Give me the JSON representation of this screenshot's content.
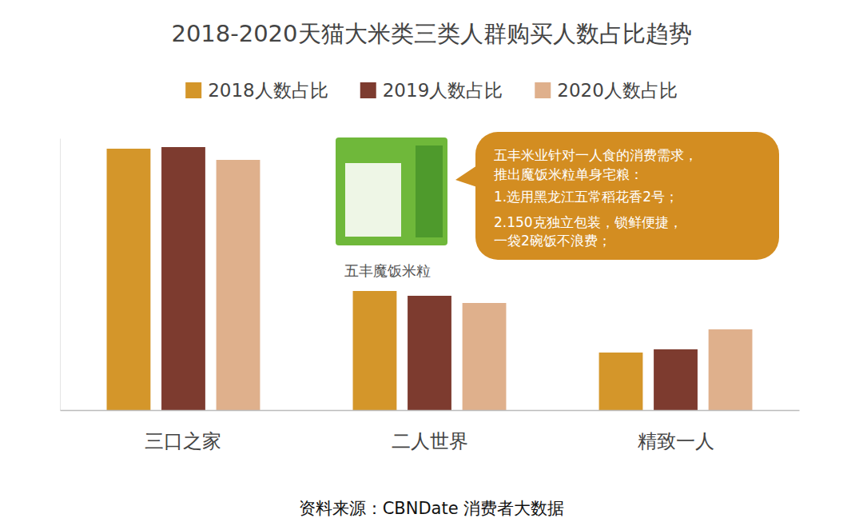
{
  "chart_data": {
    "type": "bar",
    "title": "2018-2020天猫大米类三类人群购买人数占比趋势",
    "categories": [
      "三口之家",
      "二人世界",
      "精致一人"
    ],
    "series": [
      {
        "name": "2018人数占比",
        "color": "#d4962a",
        "values": [
          32.7,
          14.9,
          7.2
        ]
      },
      {
        "name": "2019人数占比",
        "color": "#7d3b2f",
        "values": [
          32.9,
          14.3,
          7.6
        ]
      },
      {
        "name": "2020人数占比",
        "color": "#dfb08c",
        "values": [
          31.3,
          13.4,
          10.1
        ]
      }
    ],
    "ylim": [
      0,
      34
    ],
    "yticks": [],
    "tick_labels": "x",
    "grid": false,
    "legend": "top",
    "annotations": [
      {
        "text": "五丰魔饭米粒"
      },
      {
        "lines": [
          "五丰米业针对一人食的消费需求，",
          "推出魔饭米粒单身宅粮：",
          "1.选用黑龙江五常稻花香2号；",
          "2.150克独立包装，锁鲜便捷，",
          "一袋2碗饭不浪费；"
        ]
      }
    ],
    "source": "资料来源：CBNDate 消费者大数据"
  }
}
